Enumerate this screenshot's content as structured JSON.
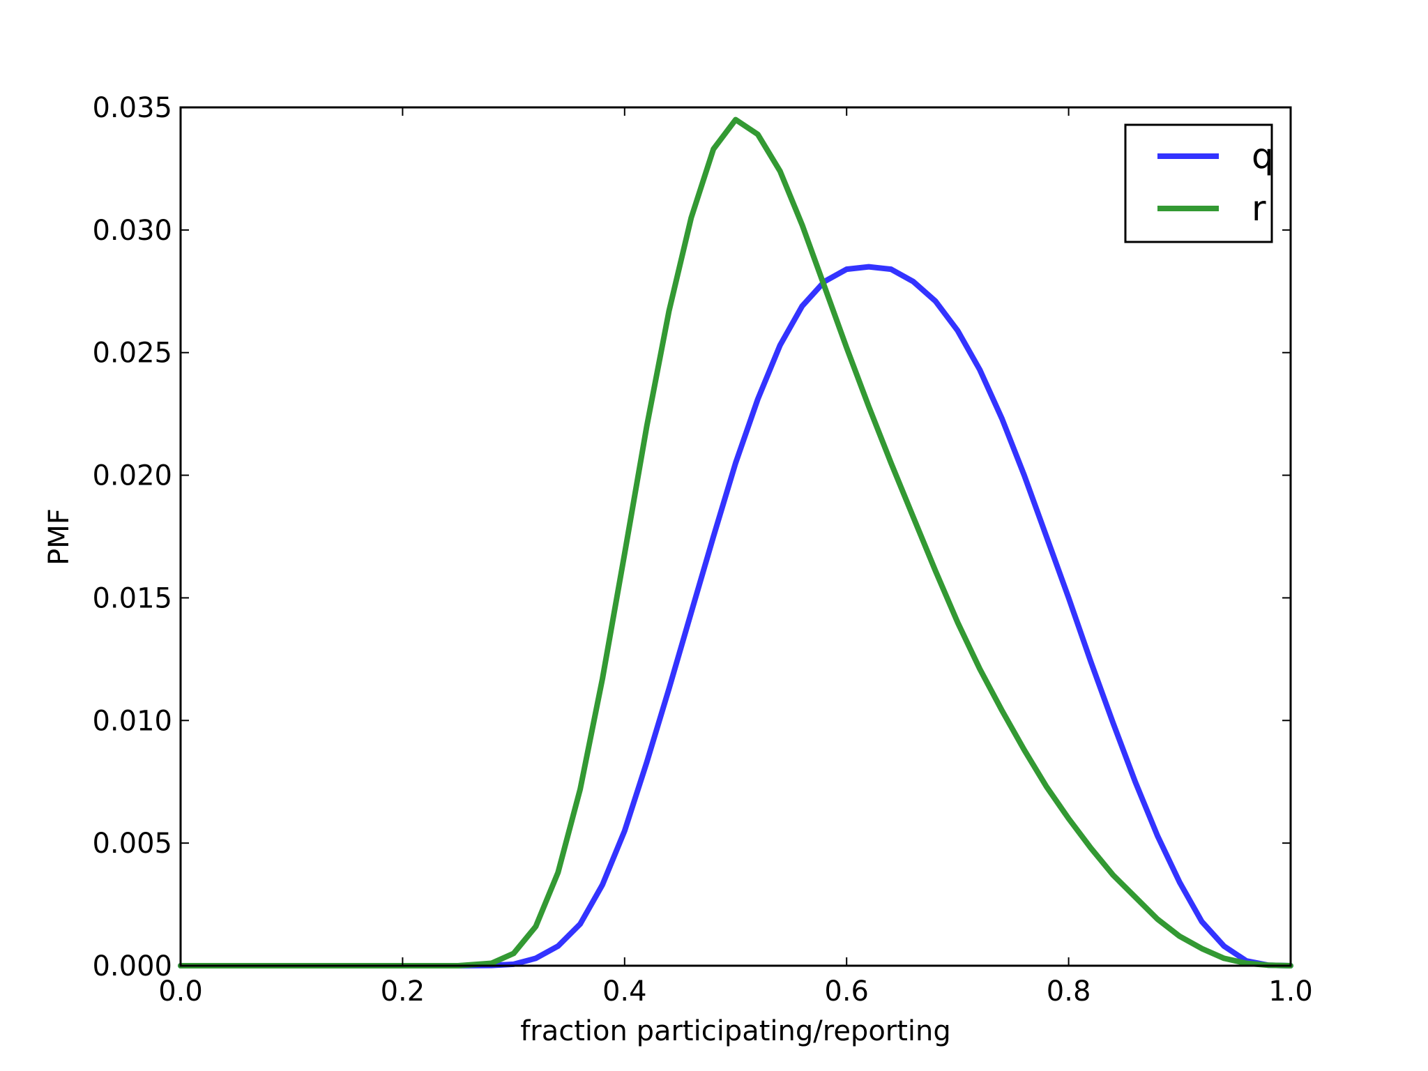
{
  "chart_data": {
    "type": "line",
    "title": "",
    "xlabel": "fraction participating/reporting",
    "ylabel": "PMF",
    "xlim": [
      0.0,
      1.0
    ],
    "ylim": [
      0.0,
      0.035
    ],
    "xticks": [
      "0.0",
      "0.2",
      "0.4",
      "0.6",
      "0.8",
      "1.0"
    ],
    "yticks": [
      "0.000",
      "0.005",
      "0.010",
      "0.015",
      "0.020",
      "0.025",
      "0.030",
      "0.035"
    ],
    "grid": false,
    "legend_position": "top-right",
    "x": [
      0.0,
      0.25,
      0.28,
      0.3,
      0.32,
      0.34,
      0.36,
      0.38,
      0.4,
      0.42,
      0.44,
      0.46,
      0.48,
      0.5,
      0.52,
      0.54,
      0.56,
      0.58,
      0.6,
      0.62,
      0.64,
      0.66,
      0.68,
      0.7,
      0.72,
      0.74,
      0.76,
      0.78,
      0.8,
      0.82,
      0.84,
      0.86,
      0.88,
      0.9,
      0.92,
      0.94,
      0.96,
      0.98,
      1.0
    ],
    "series": [
      {
        "name": "q",
        "color": "#3333ff",
        "values": [
          0.0,
          0.0,
          1e-05,
          6e-05,
          0.0003,
          0.0008,
          0.0017,
          0.0033,
          0.0055,
          0.0083,
          0.0113,
          0.0144,
          0.0175,
          0.0205,
          0.0231,
          0.0253,
          0.0269,
          0.0279,
          0.0284,
          0.0285,
          0.0284,
          0.0279,
          0.0271,
          0.0259,
          0.0243,
          0.0223,
          0.02,
          0.0175,
          0.015,
          0.0124,
          0.0099,
          0.0075,
          0.0053,
          0.0034,
          0.0018,
          0.0008,
          0.0002,
          2e-05,
          0.0
        ]
      },
      {
        "name": "r",
        "color": "#339933",
        "values": [
          0.0,
          0.0,
          0.0001,
          0.0005,
          0.0016,
          0.0038,
          0.0072,
          0.0117,
          0.0168,
          0.022,
          0.0267,
          0.0305,
          0.0333,
          0.0345,
          0.0339,
          0.0324,
          0.0302,
          0.0277,
          0.0252,
          0.0228,
          0.0205,
          0.0183,
          0.0161,
          0.014,
          0.0121,
          0.0104,
          0.0088,
          0.0073,
          0.006,
          0.0048,
          0.0037,
          0.0028,
          0.0019,
          0.0012,
          0.0007,
          0.0003,
          0.0001,
          2e-05,
          0.0
        ]
      }
    ]
  }
}
